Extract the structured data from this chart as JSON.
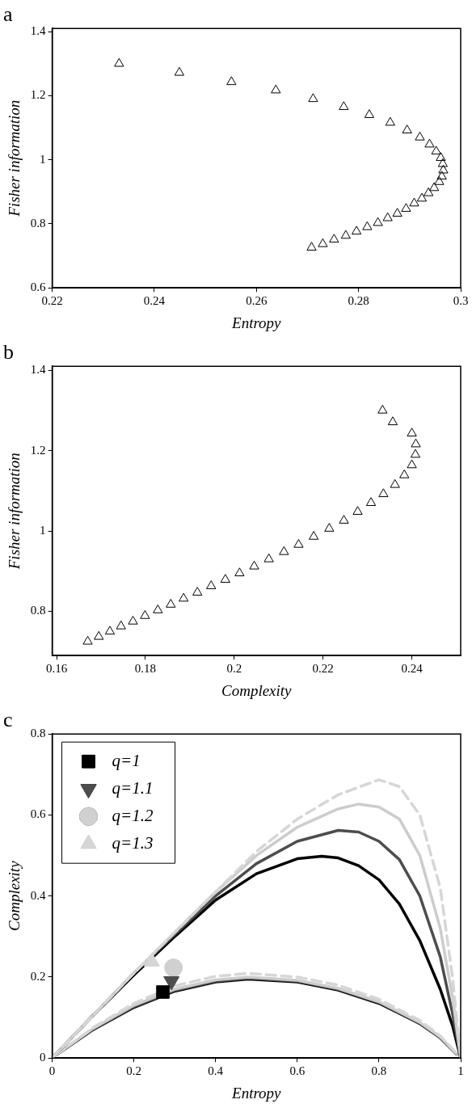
{
  "chart_data": [
    {
      "type": "scatter",
      "title": "a",
      "xlabel": "Entropy",
      "ylabel": "Fisher information",
      "marker": "triangle",
      "grid": false,
      "xlim": [
        0.22,
        0.3
      ],
      "xticks": [
        0.22,
        0.24,
        0.26,
        0.28,
        0.3
      ],
      "ylim": [
        0.6,
        1.41
      ],
      "yticks": [
        0.6,
        0.8,
        1,
        1.2,
        1.4
      ],
      "series": [
        {
          "color": "#000000",
          "x": [
            0.2331,
            0.2449,
            0.2551,
            0.2638,
            0.2711,
            0.2771,
            0.2821,
            0.2862,
            0.2895,
            0.292,
            0.2939,
            0.2952,
            0.2961,
            0.2965,
            0.2966,
            0.2963,
            0.2958,
            0.2948,
            0.2937,
            0.2924,
            0.2909,
            0.2893,
            0.2876,
            0.2857,
            0.2838,
            0.2817,
            0.2796,
            0.2775,
            0.2752,
            0.273,
            0.2708
          ],
          "values": [
            1.3,
            1.272,
            1.243,
            1.217,
            1.19,
            1.165,
            1.14,
            1.116,
            1.092,
            1.07,
            1.048,
            1.026,
            1.006,
            0.987,
            0.967,
            0.948,
            0.931,
            0.912,
            0.896,
            0.879,
            0.864,
            0.847,
            0.832,
            0.818,
            0.803,
            0.79,
            0.776,
            0.763,
            0.751,
            0.737,
            0.726
          ]
        }
      ]
    },
    {
      "type": "scatter",
      "title": "b",
      "xlabel": "Complexity",
      "ylabel": "Fisher information",
      "marker": "triangle",
      "grid": false,
      "xlim": [
        0.159,
        0.251
      ],
      "xticks": [
        0.16,
        0.18,
        0.2,
        0.22,
        0.24
      ],
      "ylim": [
        0.69,
        1.41
      ],
      "yticks": [
        0.8,
        1,
        1.2,
        1.4
      ],
      "series": [
        {
          "color": "#000000",
          "x": [
            0.2334,
            0.2357,
            0.24,
            0.2409,
            0.2408,
            0.24,
            0.2383,
            0.2362,
            0.2336,
            0.2308,
            0.2278,
            0.2247,
            0.2214,
            0.2179,
            0.2145,
            0.2112,
            0.2078,
            0.2045,
            0.2012,
            0.198,
            0.1948,
            0.1917,
            0.1886,
            0.1857,
            0.1828,
            0.1799,
            0.1772,
            0.1745,
            0.172,
            0.1695,
            0.167
          ],
          "values": [
            1.3,
            1.271,
            1.243,
            1.216,
            1.19,
            1.164,
            1.139,
            1.115,
            1.092,
            1.07,
            1.048,
            1.026,
            1.006,
            0.986,
            0.966,
            0.948,
            0.93,
            0.912,
            0.895,
            0.879,
            0.863,
            0.847,
            0.832,
            0.817,
            0.803,
            0.789,
            0.775,
            0.763,
            0.75,
            0.737,
            0.725
          ]
        }
      ]
    },
    {
      "type": "scatter",
      "title": "c",
      "xlabel": "Entropy",
      "ylabel": "Complexity",
      "grid": false,
      "legend": "top left",
      "xlim": [
        0,
        1
      ],
      "xticks": [
        0,
        0.2,
        0.4,
        0.6,
        0.8,
        1
      ],
      "ylim": [
        0,
        0.8
      ],
      "yticks": [
        0,
        0.2,
        0.4,
        0.6,
        0.8
      ],
      "series": [
        {
          "type": "line",
          "color": "#d6d6d6",
          "line_style": "dashed",
          "x": [
            0,
            0.1,
            0.2,
            0.3,
            0.4,
            0.5,
            0.6,
            0.7,
            0.8,
            0.85,
            0.9,
            0.95,
            0.98,
            1
          ],
          "values": [
            0,
            0.105,
            0.21,
            0.31,
            0.41,
            0.51,
            0.59,
            0.65,
            0.687,
            0.67,
            0.6,
            0.42,
            0.2,
            0
          ]
        },
        {
          "type": "line",
          "color": "#cccccc",
          "line_style": "solid",
          "x": [
            0,
            0.1,
            0.2,
            0.3,
            0.4,
            0.5,
            0.6,
            0.7,
            0.75,
            0.8,
            0.85,
            0.9,
            0.95,
            0.98,
            1
          ],
          "values": [
            0,
            0.105,
            0.21,
            0.31,
            0.41,
            0.5,
            0.57,
            0.615,
            0.627,
            0.62,
            0.59,
            0.5,
            0.32,
            0.15,
            0
          ]
        },
        {
          "type": "line",
          "color": "#4d4d4d",
          "line_style": "solid",
          "x": [
            0,
            0.1,
            0.2,
            0.3,
            0.4,
            0.5,
            0.6,
            0.7,
            0.75,
            0.8,
            0.85,
            0.9,
            0.95,
            0.98,
            1
          ],
          "values": [
            0,
            0.105,
            0.21,
            0.305,
            0.4,
            0.48,
            0.535,
            0.562,
            0.558,
            0.535,
            0.49,
            0.4,
            0.25,
            0.11,
            0
          ]
        },
        {
          "type": "line",
          "color": "#000000",
          "line_style": "solid",
          "x": [
            0,
            0.1,
            0.2,
            0.3,
            0.4,
            0.5,
            0.6,
            0.66,
            0.7,
            0.75,
            0.8,
            0.85,
            0.9,
            0.95,
            0.98,
            1
          ],
          "values": [
            0,
            0.105,
            0.205,
            0.3,
            0.39,
            0.455,
            0.492,
            0.498,
            0.494,
            0.475,
            0.44,
            0.38,
            0.29,
            0.17,
            0.08,
            0
          ]
        },
        {
          "type": "line",
          "color": "#d6d6d6",
          "line_style": "dashed",
          "x": [
            0.01,
            0.1,
            0.2,
            0.3,
            0.4,
            0.48,
            0.6,
            0.7,
            0.8,
            0.9,
            0.95,
            0.99
          ],
          "values": [
            0.008,
            0.075,
            0.135,
            0.178,
            0.202,
            0.209,
            0.2,
            0.18,
            0.145,
            0.093,
            0.055,
            0.011
          ]
        },
        {
          "type": "line",
          "color": "#cccccc",
          "line_style": "solid",
          "x": [
            0.01,
            0.1,
            0.2,
            0.3,
            0.4,
            0.48,
            0.6,
            0.7,
            0.8,
            0.9,
            0.95,
            0.99
          ],
          "values": [
            0.008,
            0.073,
            0.13,
            0.17,
            0.193,
            0.2,
            0.192,
            0.172,
            0.139,
            0.088,
            0.052,
            0.011
          ]
        },
        {
          "type": "line",
          "color": "#4d4d4d",
          "line_style": "solid",
          "x": [
            0.01,
            0.1,
            0.2,
            0.3,
            0.4,
            0.48,
            0.6,
            0.7,
            0.8,
            0.9,
            0.95,
            0.99
          ],
          "values": [
            0.008,
            0.071,
            0.127,
            0.167,
            0.19,
            0.197,
            0.19,
            0.17,
            0.137,
            0.086,
            0.051,
            0.01
          ]
        },
        {
          "type": "line",
          "color": "#000000",
          "line_style": "solid",
          "x": [
            0.01,
            0.1,
            0.2,
            0.3,
            0.4,
            0.48,
            0.6,
            0.7,
            0.8,
            0.9,
            0.95,
            0.99
          ],
          "values": [
            0.008,
            0.07,
            0.125,
            0.165,
            0.188,
            0.195,
            0.188,
            0.168,
            0.135,
            0.085,
            0.05,
            0.01
          ]
        },
        {
          "name": "q=1",
          "color": "#000000",
          "marker": "square",
          "x": [
            0.271
          ],
          "values": [
            0.163
          ]
        },
        {
          "name": "q=1.1",
          "color": "#4d4d4d",
          "marker": "triangle-down",
          "x": [
            0.292
          ],
          "values": [
            0.19
          ]
        },
        {
          "name": "q=1.2",
          "color": "#d0d0d0",
          "marker": "circle",
          "x": [
            0.297
          ],
          "values": [
            0.223
          ]
        },
        {
          "name": "q=1.3",
          "color": "#d6d6d6",
          "marker": "triangle",
          "x": [
            0.244
          ],
          "values": [
            0.238
          ]
        }
      ]
    }
  ]
}
